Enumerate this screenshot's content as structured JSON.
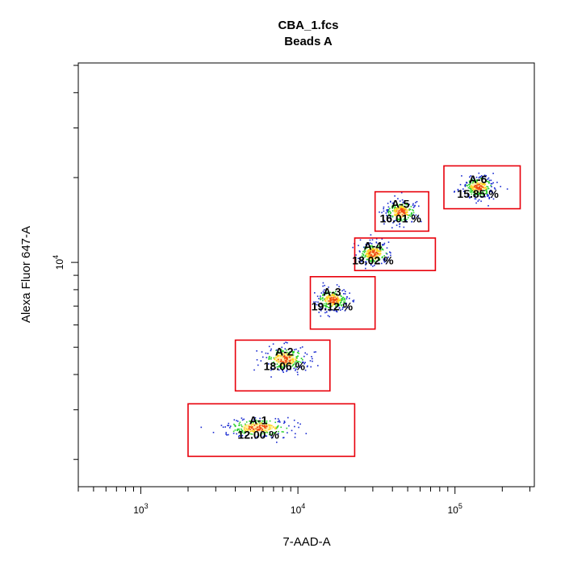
{
  "chart_data": {
    "type": "scatter",
    "title": "CBA_1.fcs",
    "subtitle": "Beads A",
    "xlabel": "7-AAD-A",
    "ylabel": "Alexa Fluor 647-A",
    "x_scale": "log",
    "y_scale": "log",
    "xlim": [
      400,
      320000
    ],
    "ylim": [
      1600,
      51000
    ],
    "x_tick_labels": [
      {
        "value": 1000,
        "base": "10",
        "exp": "3"
      },
      {
        "value": 10000,
        "base": "10",
        "exp": "4"
      },
      {
        "value": 100000,
        "base": "10",
        "exp": "5"
      }
    ],
    "y_tick_labels": [
      {
        "value": 10000,
        "base": "10",
        "exp": "4"
      }
    ],
    "grid": false,
    "legend": "none",
    "colors": {
      "gate": "#e8000b",
      "density_low": "#1a2bd1",
      "density_mid": "#2bd12b",
      "density_high": "#ffd21a",
      "density_peak": "#e8000b"
    },
    "gates": [
      {
        "name": "A-1",
        "percent": "12.00 %",
        "x_range": [
          2000,
          23000
        ],
        "y_range": [
          2050,
          3150
        ],
        "center": [
          5600,
          2600
        ]
      },
      {
        "name": "A-2",
        "percent": "18.06 %",
        "x_range": [
          4000,
          16000
        ],
        "y_range": [
          3500,
          5300
        ],
        "center": [
          8200,
          4550
        ]
      },
      {
        "name": "A-3",
        "percent": "19.12 %",
        "x_range": [
          12000,
          31000
        ],
        "y_range": [
          5800,
          8900
        ],
        "center": [
          16500,
          7400
        ]
      },
      {
        "name": "A-4",
        "percent": "18.02 %",
        "x_range": [
          23000,
          75000
        ],
        "y_range": [
          9350,
          12200
        ],
        "center": [
          30000,
          10800
        ]
      },
      {
        "name": "A-5",
        "percent": "16.01 %",
        "x_range": [
          31000,
          68000
        ],
        "y_range": [
          12900,
          17800
        ],
        "center": [
          45000,
          15200
        ]
      },
      {
        "name": "A-6",
        "percent": "15.85 %",
        "x_range": [
          85000,
          260000
        ],
        "y_range": [
          15500,
          22000
        ],
        "center": [
          140000,
          18600
        ]
      }
    ]
  }
}
